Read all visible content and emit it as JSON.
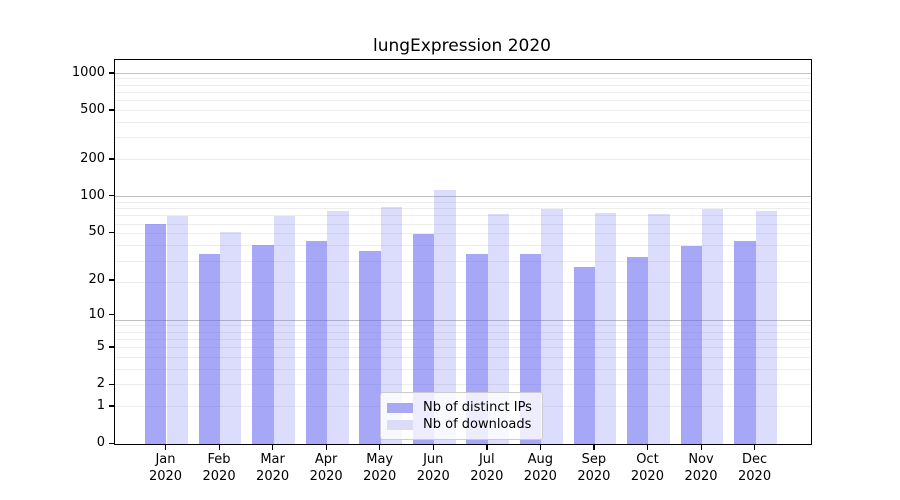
{
  "chart_data": {
    "type": "bar",
    "title": "lungExpression 2020",
    "categories": [
      "Jan 2020",
      "Feb 2020",
      "Mar 2020",
      "Apr 2020",
      "May 2020",
      "Jun 2020",
      "Jul 2020",
      "Aug 2020",
      "Sep 2020",
      "Oct 2020",
      "Nov 2020",
      "Dec 2020"
    ],
    "series": [
      {
        "name": "Nb of distinct IPs",
        "fill": "rgba(95,95,240,0.55)",
        "legend_color": "#a8a8f4",
        "values": [
          60,
          34,
          40,
          43,
          36,
          49,
          34,
          34,
          26,
          32,
          39,
          43
        ]
      },
      {
        "name": "Nb of downloads",
        "fill": "rgba(95,95,240,0.22)",
        "legend_color": "#dcdcf9",
        "values": [
          70,
          51,
          70,
          76,
          83,
          113,
          72,
          79,
          74,
          72,
          79,
          77
        ]
      }
    ],
    "yticks": [
      0,
      1,
      2,
      5,
      10,
      20,
      50,
      100,
      200,
      500,
      1000
    ],
    "yscale": "log1p",
    "ylim": [
      0,
      1290
    ],
    "xlabel": "",
    "ylabel": "",
    "grid": true,
    "legend_position": "lower-center",
    "colors": {
      "major_gridline": "#c2c2c2",
      "minor_gridline": "#ededed",
      "axis": "#000000",
      "background": "#ffffff"
    }
  }
}
